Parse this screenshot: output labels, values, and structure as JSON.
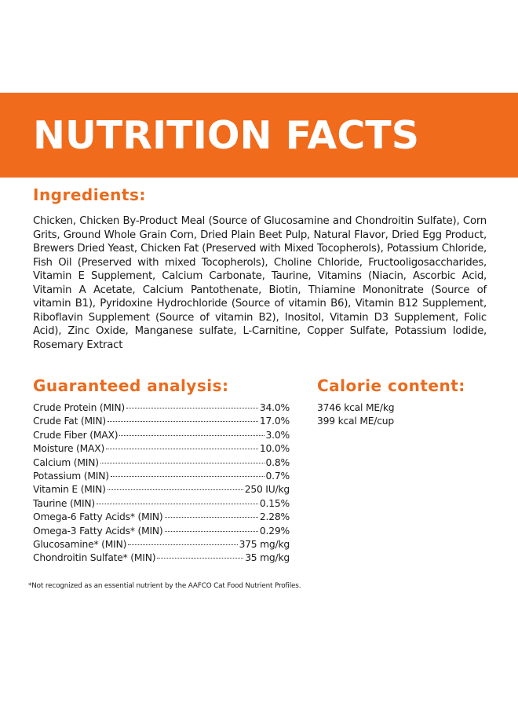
{
  "banner": {
    "title": "NUTRITION FACTS",
    "color": "#f06b1c"
  },
  "ingredients": {
    "heading": "Ingredients:",
    "text": "Chicken, Chicken By-Product Meal (Source of Glucosamine and Chondroitin Sulfate), Corn Grits, Ground Whole Grain Corn, Dried Plain Beet Pulp, Natural Flavor, Dried Egg Product, Brewers Dried Yeast, Chicken Fat (Preserved with Mixed Tocopherols), Potassium Chloride, Fish Oil (Preserved with mixed Tocopherols), Choline Chloride, Fructooligosaccharides, Vitamin E Supplement, Calcium Carbonate, Taurine, Vitamins (Niacin, Ascorbic Acid, Vitamin A Acetate, Calcium Pantothenate, Biotin, Thiamine Mononitrate (Source of vitamin B1), Pyridoxine Hydrochloride (Source of vitamin B6), Vitamin B12 Supplement, Riboflavin Supplement (Source of vitamin B2), Inositol, Vitamin D3 Supplement, Folic Acid), Zinc Oxide, Manganese sulfate, L-Carnitine, Copper Sulfate, Potassium Iodide, Rosemary Extract"
  },
  "analysis": {
    "heading": "Guaranteed analysis:",
    "rows": [
      {
        "label": "Crude Protein (MIN)",
        "value": "34.0%"
      },
      {
        "label": "Crude Fat (MIN)",
        "value": "17.0%"
      },
      {
        "label": "Crude Fiber (MAX)",
        "value": "3.0%"
      },
      {
        "label": "Moisture (MAX)",
        "value": "10.0%"
      },
      {
        "label": "Calcium (MIN)",
        "value": "0.8%"
      },
      {
        "label": "Potassium (MIN)",
        "value": "0.7%"
      },
      {
        "label": "Vitamin E (MIN)",
        "value": "250 IU/kg"
      },
      {
        "label": "Taurine (MIN)",
        "value": "0.15%"
      },
      {
        "label": "Omega-6 Fatty Acids* (MIN)",
        "value": "2.28%"
      },
      {
        "label": "Omega-3 Fatty Acids* (MIN)",
        "value": "0.29%"
      },
      {
        "label": "Glucosamine* (MIN)",
        "value": "375 mg/kg"
      },
      {
        "label": "Chondroitin Sulfate* (MIN)",
        "value": "35 mg/kg"
      }
    ]
  },
  "calorie": {
    "heading": "Calorie content:",
    "lines": [
      "3746 kcal ME/kg",
      "399 kcal ME/cup"
    ]
  },
  "footnote": "*Not recognized as an essential nutrient by the AAFCO Cat Food Nutrient Profiles.",
  "accent_color": "#ea6b1e"
}
